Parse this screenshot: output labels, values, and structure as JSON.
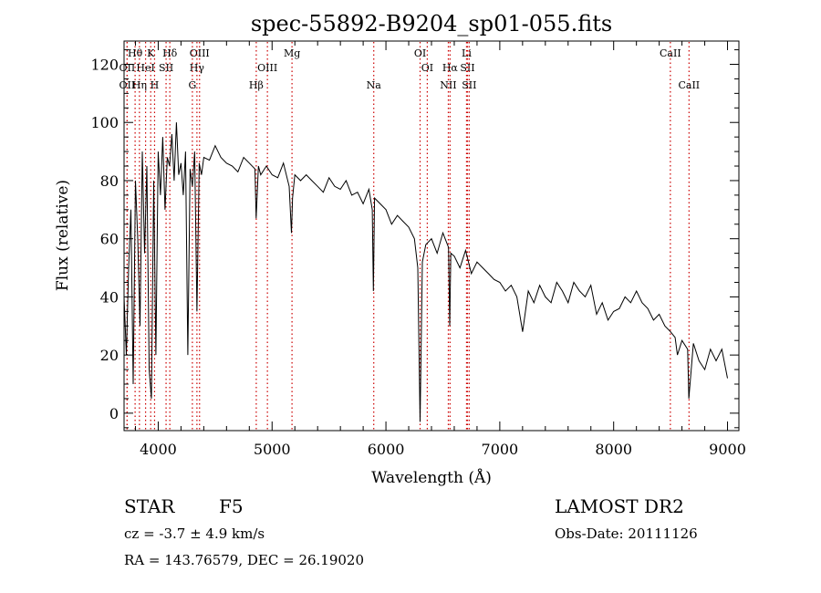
{
  "chart_data": {
    "type": "line",
    "title": "spec-55892-B9204_sp01-055.fits",
    "xlabel": "Wavelength (Å)",
    "ylabel": "Flux (relative)",
    "xlim": [
      3700,
      9100
    ],
    "ylim": [
      -6,
      128
    ],
    "x_ticks": [
      4000,
      5000,
      6000,
      7000,
      8000,
      9000
    ],
    "y_ticks": [
      0,
      20,
      40,
      60,
      80,
      100,
      120
    ],
    "line_color": "#000000",
    "marker_color": "#cc0000",
    "series": [
      {
        "x": [
          3700,
          3720,
          3740,
          3760,
          3780,
          3800,
          3820,
          3840,
          3860,
          3880,
          3900,
          3920,
          3940,
          3960,
          3980,
          4000,
          4020,
          4040,
          4060,
          4080,
          4100,
          4120,
          4140,
          4160,
          4180,
          4200,
          4220,
          4240,
          4260,
          4280,
          4300,
          4320,
          4340,
          4360,
          4380,
          4400,
          4450,
          4500,
          4550,
          4600,
          4650,
          4700,
          4750,
          4800,
          4850,
          4860,
          4880,
          4900,
          4950,
          5000,
          5050,
          5100,
          5150,
          5170,
          5180,
          5200,
          5250,
          5300,
          5350,
          5400,
          5450,
          5500,
          5550,
          5600,
          5650,
          5700,
          5750,
          5800,
          5850,
          5880,
          5890,
          5900,
          5950,
          6000,
          6050,
          6100,
          6150,
          6200,
          6250,
          6280,
          6300,
          6320,
          6350,
          6400,
          6450,
          6500,
          6550,
          6560,
          6570,
          6600,
          6650,
          6700,
          6750,
          6800,
          6850,
          6900,
          6950,
          7000,
          7050,
          7100,
          7150,
          7200,
          7250,
          7300,
          7350,
          7400,
          7450,
          7500,
          7550,
          7600,
          7650,
          7700,
          7750,
          7800,
          7850,
          7900,
          7950,
          8000,
          8050,
          8100,
          8150,
          8200,
          8250,
          8300,
          8350,
          8400,
          8450,
          8500,
          8540,
          8560,
          8600,
          8650,
          8660,
          8700,
          8750,
          8800,
          8850,
          8900,
          8950,
          9000
        ],
        "y": [
          40,
          20,
          50,
          70,
          10,
          80,
          60,
          30,
          90,
          55,
          85,
          15,
          5,
          80,
          20,
          90,
          75,
          95,
          70,
          88,
          85,
          96,
          80,
          100,
          82,
          86,
          75,
          90,
          20,
          84,
          78,
          90,
          35,
          86,
          82,
          88,
          87,
          92,
          88,
          86,
          85,
          83,
          88,
          86,
          84,
          67,
          85,
          82,
          85,
          82,
          81,
          86,
          78,
          62,
          74,
          82,
          80,
          82,
          80,
          78,
          76,
          81,
          78,
          77,
          80,
          75,
          76,
          72,
          77,
          70,
          42,
          74,
          72,
          70,
          65,
          68,
          66,
          64,
          60,
          50,
          -3,
          52,
          58,
          60,
          55,
          62,
          57,
          30,
          55,
          54,
          50,
          56,
          48,
          52,
          50,
          48,
          46,
          45,
          42,
          44,
          40,
          28,
          42,
          38,
          44,
          40,
          38,
          45,
          42,
          38,
          45,
          42,
          40,
          44,
          34,
          38,
          32,
          35,
          36,
          40,
          38,
          42,
          38,
          36,
          32,
          34,
          30,
          28,
          26,
          20,
          25,
          22,
          5,
          24,
          18,
          15,
          22,
          18,
          22,
          12
        ]
      }
    ],
    "line_markers": [
      {
        "label": "Hθ",
        "x": 3797,
        "row": 1
      },
      {
        "label": "K",
        "x": 3934,
        "row": 1
      },
      {
        "label": "Hδ",
        "x": 4102,
        "row": 1
      },
      {
        "label": "OIII",
        "x": 4363,
        "row": 1
      },
      {
        "label": "Mg",
        "x": 5175,
        "row": 1
      },
      {
        "label": "OI",
        "x": 6300,
        "row": 1
      },
      {
        "label": "Li",
        "x": 6708,
        "row": 1
      },
      {
        "label": "CaII",
        "x": 8498,
        "row": 1
      },
      {
        "label": "OII",
        "x": 3727,
        "row": 2
      },
      {
        "label": "HeI",
        "x": 3889,
        "row": 2
      },
      {
        "label": "SII",
        "x": 4069,
        "row": 2
      },
      {
        "label": "Hγ",
        "x": 4340,
        "row": 2
      },
      {
        "label": "OIII",
        "x": 4959,
        "row": 2
      },
      {
        "label": "OI",
        "x": 6363,
        "row": 2
      },
      {
        "label": "Hα",
        "x": 6563,
        "row": 2
      },
      {
        "label": "SII",
        "x": 6716,
        "row": 2
      },
      {
        "label": "OII",
        "x": 3727,
        "row": 3
      },
      {
        "label": "Hη",
        "x": 3835,
        "row": 3
      },
      {
        "label": "H",
        "x": 3968,
        "row": 3
      },
      {
        "label": "G",
        "x": 4300,
        "row": 3
      },
      {
        "label": "Hβ",
        "x": 4861,
        "row": 3
      },
      {
        "label": "Na",
        "x": 5893,
        "row": 3
      },
      {
        "label": "NII",
        "x": 6548,
        "row": 3
      },
      {
        "label": "SII",
        "x": 6731,
        "row": 3
      },
      {
        "label": "CaII",
        "x": 8662,
        "row": 3
      }
    ]
  },
  "info": {
    "class_label": "STAR",
    "subclass": "F5",
    "survey": "LAMOST DR2",
    "redshift": "cz = -3.7 ± 4.9 km/s",
    "obs_date": "Obs-Date: 20111126",
    "coords": "RA = 143.76579, DEC =  26.19020"
  }
}
